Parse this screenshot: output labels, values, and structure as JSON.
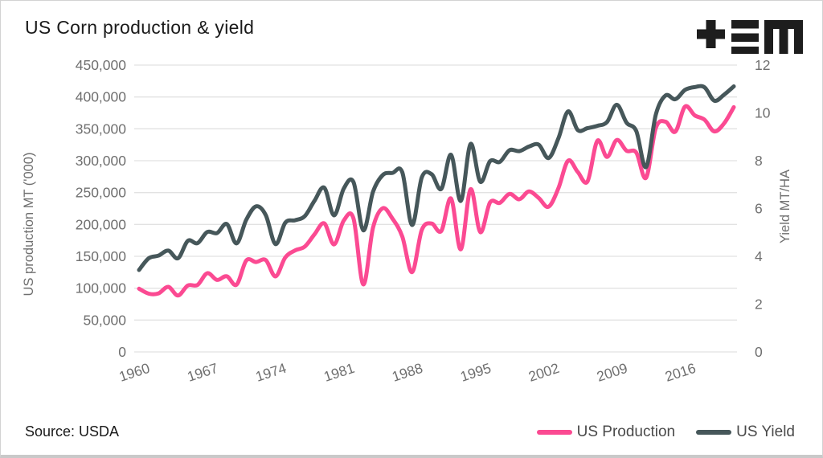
{
  "header": {
    "title": "US Corn production & yield",
    "logo": "tem-logo"
  },
  "footer": {
    "source": "Source: USDA"
  },
  "colors": {
    "production": "#fb4a92",
    "yield": "#46575a",
    "grid": "#e2e2e2",
    "tick_text": "#6f6f6f",
    "axis_title_text": "#6f6f6f",
    "title_text": "#1a1a1a",
    "legend_text": "#4a4a4a",
    "logo": "#1d1d1d",
    "background": "#ffffff"
  },
  "chart_data": {
    "type": "line",
    "title": "US Corn production & yield",
    "source": "Source: USDA",
    "grid": "horizontal",
    "legend_position": "bottom-right",
    "x": [
      1960,
      1961,
      1962,
      1963,
      1964,
      1965,
      1966,
      1967,
      1968,
      1969,
      1970,
      1971,
      1972,
      1973,
      1974,
      1975,
      1976,
      1977,
      1978,
      1979,
      1980,
      1981,
      1982,
      1983,
      1984,
      1985,
      1986,
      1987,
      1988,
      1989,
      1990,
      1991,
      1992,
      1993,
      1994,
      1995,
      1996,
      1997,
      1998,
      1999,
      2000,
      2001,
      2002,
      2003,
      2004,
      2005,
      2006,
      2007,
      2008,
      2009,
      2010,
      2011,
      2012,
      2013,
      2014,
      2015,
      2016,
      2017,
      2018,
      2019,
      2020,
      2021
    ],
    "series": [
      {
        "name": "US Production",
        "axis": "left",
        "color": "#fb4a92",
        "values": [
          99172,
          91388,
          91906,
          102093,
          88505,
          104216,
          105187,
          123511,
          112975,
          118760,
          105472,
          143418,
          141053,
          144087,
          118491,
          148294,
          159173,
          165223,
          184616,
          201655,
          168647,
          206222,
          209180,
          106042,
          194928,
          225447,
          208944,
          181143,
          125194,
          191320,
          201534,
          189868,
          240719,
          160954,
          255295,
          187970,
          234518,
          233864,
          247882,
          239549,
          251854,
          241377,
          227767,
          256229,
          299876,
          282263,
          267503,
          331177,
          305911,
          332549,
          315618,
          312789,
          273192,
          351272,
          361091,
          345506,
          384778,
          371096,
          364262,
          345962,
          358447,
          383943
        ]
      },
      {
        "name": "US Yield",
        "axis": "right",
        "color": "#46575a",
        "values": [
          3.43,
          3.92,
          4.03,
          4.24,
          3.92,
          4.65,
          4.55,
          5.02,
          4.97,
          5.35,
          4.54,
          5.53,
          6.09,
          5.72,
          4.51,
          5.41,
          5.51,
          5.68,
          6.33,
          6.87,
          5.71,
          6.84,
          7.1,
          5.09,
          6.7,
          7.4,
          7.49,
          7.52,
          5.31,
          7.3,
          7.44,
          6.82,
          8.25,
          6.32,
          8.7,
          7.12,
          7.98,
          7.95,
          8.44,
          8.4,
          8.59,
          8.67,
          8.11,
          8.92,
          10.06,
          9.28,
          9.36,
          9.46,
          9.62,
          10.34,
          9.59,
          9.24,
          7.73,
          9.93,
          10.73,
          10.57,
          10.96,
          11.08,
          11.07,
          10.51,
          10.76,
          11.11
        ]
      }
    ],
    "left_axis": {
      "label": "US production MT ('000)",
      "min": 0,
      "max": 450000,
      "tick_step": 50000,
      "tick_labels": [
        "0",
        "50,000",
        "100,000",
        "150,000",
        "200,000",
        "250,000",
        "300,000",
        "350,000",
        "400,000",
        "450,000"
      ]
    },
    "right_axis": {
      "label": "Yield MT/HA",
      "min": 0,
      "max": 12,
      "tick_step": 2,
      "tick_labels": [
        "0",
        "2",
        "4",
        "6",
        "8",
        "10",
        "12"
      ]
    },
    "x_axis": {
      "tick_labels": [
        "1960",
        "1967",
        "1974",
        "1981",
        "1988",
        "1995",
        "2002",
        "2009",
        "2016"
      ],
      "tick_years": [
        1960,
        1967,
        1974,
        1981,
        1988,
        1995,
        2002,
        2009,
        2016
      ],
      "label_rotation_deg": -18
    }
  }
}
